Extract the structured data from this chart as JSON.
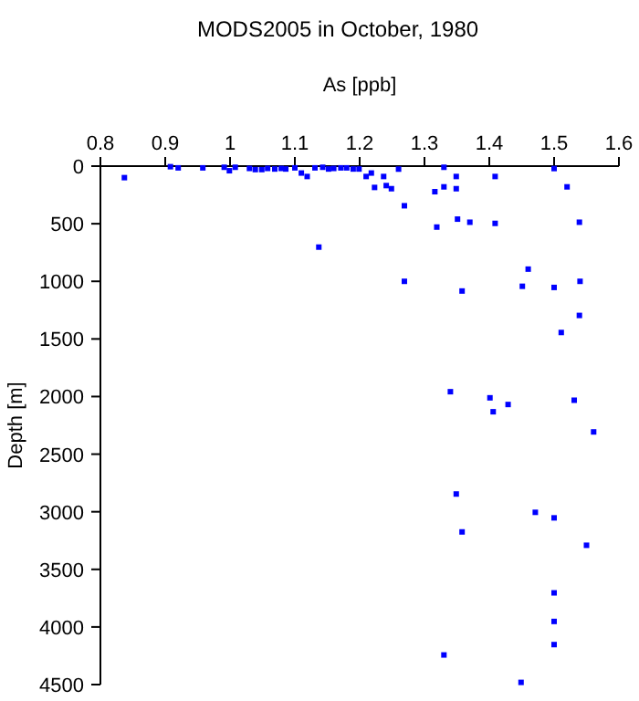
{
  "chart_data": {
    "type": "scatter",
    "title": "MODS2005 in October, 1980",
    "xlabel": "As [ppb]",
    "ylabel": "Depth [m]",
    "xlim": [
      0.8,
      1.6
    ],
    "xticks": [
      0.8,
      0.9,
      1,
      1.1,
      1.2,
      1.3,
      1.4,
      1.5,
      1.6
    ],
    "ylim": [
      4500,
      0
    ],
    "yticks": [
      0,
      500,
      1000,
      1500,
      2000,
      2500,
      3000,
      3500,
      4000,
      4500
    ],
    "marker": "square",
    "grid": false,
    "series": [
      {
        "color": "#0000ff",
        "x": [
          0.837,
          0.908,
          0.92,
          0.958,
          0.991,
          0.999,
          1.008,
          1.03,
          1.039,
          1.049,
          1.058,
          1.069,
          1.079,
          1.086,
          1.1,
          1.11,
          1.119,
          1.131,
          1.143,
          1.152,
          1.16,
          1.171,
          1.18,
          1.19,
          1.199,
          1.21,
          1.218,
          1.223,
          1.237,
          1.241,
          1.249,
          1.26,
          1.269,
          1.316,
          1.319,
          1.33,
          1.33,
          1.349,
          1.349,
          1.351,
          1.37,
          1.409,
          1.409,
          1.5,
          1.52,
          1.539,
          1.137,
          1.269,
          1.358,
          1.46,
          1.451,
          1.5,
          1.54,
          1.539,
          1.511,
          1.34,
          1.401,
          1.406,
          1.429,
          1.531,
          1.561,
          1.349,
          1.471,
          1.5,
          1.358,
          1.55,
          1.5,
          1.5,
          1.5,
          1.33,
          1.449
        ],
        "values": [
          100,
          5,
          15,
          15,
          10,
          40,
          10,
          20,
          30,
          30,
          20,
          25,
          20,
          25,
          15,
          60,
          90,
          15,
          10,
          25,
          20,
          15,
          15,
          25,
          25,
          90,
          60,
          185,
          90,
          169,
          196,
          26,
          344,
          222,
          529,
          10,
          180,
          90,
          196,
          460,
          487,
          90,
          497,
          21,
          180,
          487,
          703,
          1000,
          1084,
          894,
          1043,
          1053,
          1000,
          1296,
          1444,
          1958,
          2011,
          2132,
          2069,
          2032,
          2307,
          2846,
          3005,
          3053,
          3175,
          3291,
          3704,
          3952,
          4153,
          4243,
          4481
        ]
      }
    ]
  }
}
